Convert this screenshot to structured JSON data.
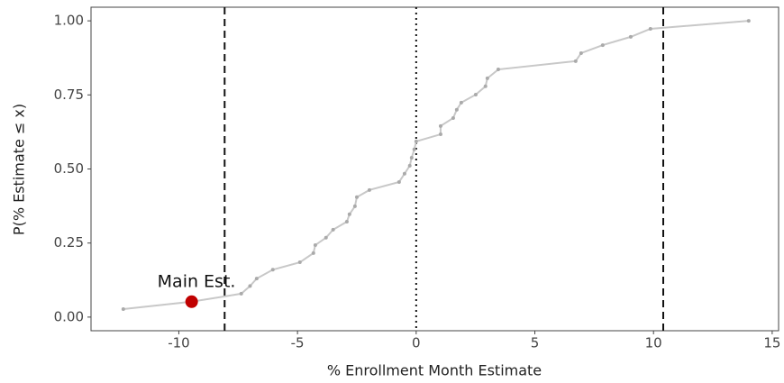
{
  "chart_data": {
    "type": "line",
    "x_label": "% Enrollment Month Estimate",
    "y_label": "P(% Estimate ≤ x)",
    "x": [
      -12.34,
      -9.46,
      -7.37,
      -7.0,
      -6.72,
      -6.04,
      -4.9,
      -4.33,
      -4.25,
      -3.8,
      -3.5,
      -2.92,
      -2.81,
      -2.58,
      -2.5,
      -1.97,
      -0.72,
      -0.49,
      -0.27,
      -0.19,
      -0.08,
      0,
      1.03,
      1.03,
      1.56,
      1.71,
      1.9,
      2.51,
      2.92,
      3.0,
      3.46,
      6.72,
      6.95,
      7.86,
      9.04,
      9.87,
      14.01
    ],
    "values": [
      0.027,
      0.052,
      0.079,
      0.105,
      0.13,
      0.16,
      0.185,
      0.216,
      0.243,
      0.268,
      0.295,
      0.322,
      0.347,
      0.374,
      0.405,
      0.429,
      0.456,
      0.484,
      0.511,
      0.538,
      0.566,
      0.593,
      0.617,
      0.645,
      0.672,
      0.7,
      0.724,
      0.751,
      0.779,
      0.806,
      0.836,
      0.864,
      0.891,
      0.918,
      0.946,
      0.973,
      1.0
    ],
    "color": "#c8c8c8",
    "xlim": [
      -13.7,
      15.27
    ],
    "ylim": [
      -0.046,
      1.046
    ],
    "xticks": [
      -10,
      -5,
      0,
      5,
      10,
      15
    ],
    "yticks": [
      {
        "value": 0,
        "label": "0.00"
      },
      {
        "value": 0.25,
        "label": "0.25"
      },
      {
        "value": 0.5,
        "label": "0.50"
      },
      {
        "value": 0.75,
        "label": "0.75"
      },
      {
        "value": 1,
        "label": "1.00"
      }
    ],
    "reference_lines": [
      {
        "x": -8.07,
        "style": "dashed"
      },
      {
        "x": 0,
        "style": "dotted"
      },
      {
        "x": 10.41,
        "style": "dashed"
      }
    ],
    "highlight": {
      "label": "Main Est.",
      "x": -9.46,
      "y": 0.052,
      "color": "#c00000"
    }
  }
}
